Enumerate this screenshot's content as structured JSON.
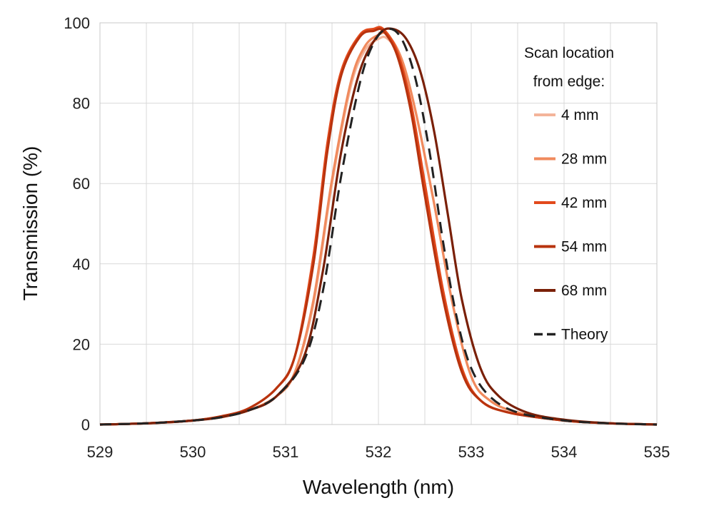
{
  "chart_data": {
    "type": "line",
    "xlabel": "Wavelength (nm)",
    "ylabel": "Transmission (%)",
    "xlim": [
      529,
      535
    ],
    "ylim": [
      0,
      100
    ],
    "x_ticks": [
      "529",
      "530",
      "531",
      "532",
      "533",
      "534",
      "535"
    ],
    "y_ticks": [
      "0",
      "20",
      "40",
      "60",
      "80",
      "100"
    ],
    "grid": true,
    "legend": {
      "title_lines": [
        "Scan location",
        "from edge:"
      ],
      "placement": "top-right"
    },
    "series": [
      {
        "name": "4 mm",
        "color": "#f4b49a",
        "dashed": false,
        "x": [
          529.0,
          529.5,
          530.0,
          530.3,
          530.6,
          530.9,
          531.1,
          531.3,
          531.5,
          531.7,
          531.85,
          532.0,
          532.1,
          532.25,
          532.4,
          532.6,
          532.8,
          533.0,
          533.2,
          533.5,
          534.0,
          534.5,
          535.0
        ],
        "y": [
          0,
          0.3,
          1.0,
          2.0,
          3.5,
          7,
          13,
          30,
          60,
          84,
          93,
          96,
          96,
          91,
          78,
          55,
          30,
          12,
          6,
          3,
          1,
          0.3,
          0
        ]
      },
      {
        "name": "28 mm",
        "color": "#f08a5d",
        "dashed": false,
        "x": [
          529.0,
          529.5,
          530.0,
          530.3,
          530.6,
          530.9,
          531.1,
          531.3,
          531.5,
          531.7,
          531.85,
          532.0,
          532.1,
          532.25,
          532.4,
          532.6,
          532.8,
          533.0,
          533.2,
          533.5,
          534.0,
          534.5,
          535.0
        ],
        "y": [
          0,
          0.3,
          1.0,
          2.0,
          3.5,
          7,
          13,
          31,
          61,
          85,
          94,
          97,
          97,
          91,
          78,
          55,
          30,
          12,
          6,
          3,
          1,
          0.3,
          0
        ]
      },
      {
        "name": "42 mm",
        "color": "#e24a1c",
        "dashed": false,
        "x": [
          529.0,
          529.5,
          530.0,
          530.3,
          530.6,
          530.9,
          531.1,
          531.3,
          531.45,
          531.6,
          531.8,
          531.95,
          532.05,
          532.2,
          532.35,
          532.5,
          532.7,
          532.9,
          533.1,
          533.4,
          534.0,
          534.5,
          535.0
        ],
        "y": [
          0,
          0.3,
          1.0,
          2.0,
          4,
          9,
          17,
          42,
          70,
          88,
          97,
          98.5,
          98.5,
          93,
          80,
          60,
          33,
          14,
          6,
          3,
          1,
          0.3,
          0
        ]
      },
      {
        "name": "54 mm",
        "color": "#b8330e",
        "dashed": false,
        "x": [
          529.0,
          529.5,
          530.0,
          530.3,
          530.6,
          530.9,
          531.1,
          531.3,
          531.45,
          531.6,
          531.8,
          531.95,
          532.05,
          532.2,
          532.35,
          532.5,
          532.7,
          532.9,
          533.1,
          533.4,
          534.0,
          534.5,
          535.0
        ],
        "y": [
          0,
          0.3,
          1.0,
          2.0,
          4,
          9,
          17,
          40,
          68,
          87,
          96.5,
          98,
          98,
          92,
          78,
          57,
          31,
          13,
          6,
          3,
          1,
          0.3,
          0
        ]
      },
      {
        "name": "68 mm",
        "color": "#7a2008",
        "dashed": false,
        "x": [
          529.0,
          529.5,
          530.0,
          530.3,
          530.6,
          530.9,
          531.2,
          531.4,
          531.6,
          531.8,
          532.0,
          532.15,
          532.3,
          532.45,
          532.6,
          532.75,
          532.9,
          533.1,
          533.3,
          533.6,
          534.0,
          534.5,
          535.0
        ],
        "y": [
          0,
          0.3,
          1.0,
          1.8,
          3.5,
          7,
          17,
          38,
          68,
          88,
          97,
          98.5,
          96,
          88,
          73,
          52,
          31,
          14,
          7,
          3,
          1.2,
          0.3,
          0
        ]
      },
      {
        "name": "Theory",
        "color": "#222222",
        "dashed": true,
        "x": [
          529.0,
          529.5,
          530.0,
          530.3,
          530.6,
          530.9,
          531.2,
          531.4,
          531.6,
          531.8,
          531.95,
          532.1,
          532.25,
          532.4,
          532.55,
          532.7,
          532.85,
          533.0,
          533.2,
          533.5,
          534.0,
          534.5,
          535.0
        ],
        "y": [
          0,
          0.3,
          1.0,
          1.8,
          3.5,
          7,
          16,
          33,
          62,
          85,
          95,
          98.5,
          96,
          86,
          68,
          45,
          26,
          14,
          7,
          3,
          1,
          0.3,
          0
        ]
      }
    ]
  }
}
